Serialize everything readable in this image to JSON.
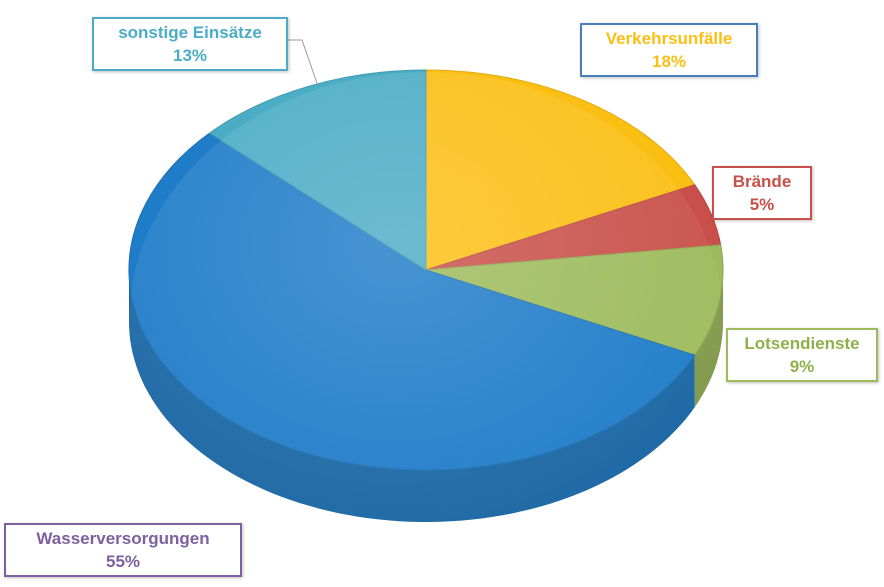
{
  "chart_data": {
    "type": "pie",
    "categories": [
      "Verkehrsunfälle",
      "Brände",
      "Lotsendienste",
      "Wasserversorgungen",
      "sonstige Einsätze"
    ],
    "values": [
      18,
      5,
      9,
      55,
      13
    ],
    "value_labels": [
      "18%",
      "5%",
      "9%",
      "55%",
      "13%"
    ],
    "colors": [
      "#FBBF14",
      "#C9504A",
      "#9DBB5C",
      "#1F7CC8",
      "#4BACC6"
    ],
    "three_d": true,
    "legend": "none",
    "data_labels": "callout boxes outside slices"
  }
}
